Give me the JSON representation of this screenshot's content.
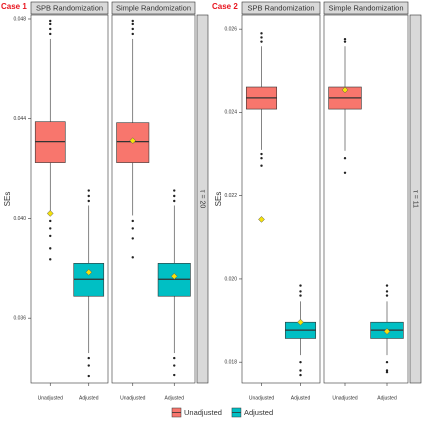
{
  "chart_data": [
    {
      "type": "box",
      "title": "Case 1",
      "facet": "τ = 20",
      "ylabel": "SEs",
      "categories": [
        "Unadjusted",
        "Adjusted"
      ],
      "colors": [
        "#F8766D",
        "#00BFC4"
      ],
      "ylim": [
        0.0334,
        0.04816
      ],
      "yticks": [
        0.036,
        {
          "value": 0.04,
          "label": "0.040"
        },
        0.044,
        0.048
      ],
      "panels": [
        {
          "title": "SPB Randomization",
          "boxes": [
            {
              "whisker_low": 0.04012,
              "q1": 0.04224,
              "median": 0.04308,
              "q3": 0.04388,
              "whisker_high": 0.0472,
              "mean": 0.0402,
              "outliers": [
                0.0474,
                0.0476,
                0.0478,
                0.04792,
                0.0399,
                0.0396,
                0.0393,
                0.0388,
                0.03836
              ]
            },
            {
              "whisker_low": 0.0346,
              "q1": 0.03688,
              "median": 0.03756,
              "q3": 0.0382,
              "whisker_high": 0.04052,
              "mean": 0.03784,
              "outliers": [
                0.0407,
                0.0409,
                0.04112,
                0.0344,
                0.0341,
                0.03368
              ]
            }
          ]
        },
        {
          "title": "Simple Randomization",
          "boxes": [
            {
              "whisker_low": 0.04012,
              "q1": 0.04224,
              "median": 0.04308,
              "q3": 0.04384,
              "whisker_high": 0.0472,
              "mean": 0.04312,
              "outliers": [
                0.0474,
                0.0476,
                0.0478,
                0.04792,
                0.0399,
                0.0396,
                0.0392,
                0.03844
              ]
            },
            {
              "whisker_low": 0.0346,
              "q1": 0.03688,
              "median": 0.03756,
              "q3": 0.0382,
              "whisker_high": 0.04052,
              "mean": 0.03768,
              "outliers": [
                0.0407,
                0.0409,
                0.04112,
                0.0344,
                0.0341,
                0.03372
              ]
            }
          ]
        }
      ]
    },
    {
      "type": "box",
      "title": "Case 2",
      "facet": "τ = 11",
      "ylabel": "SEs",
      "categories": [
        "Unadjusted",
        "Adjusted"
      ],
      "colors": [
        "#F8766D",
        "#00BFC4"
      ],
      "ylim": [
        0.0175,
        0.02634
      ],
      "yticks": [
        0.018,
        {
          "value": 0.02,
          "label": "0.020"
        },
        0.022,
        0.024,
        0.026
      ],
      "panels": [
        {
          "title": "SPB Randomization",
          "boxes": [
            {
              "whisker_low": 0.0231,
              "q1": 0.02408,
              "median": 0.02435,
              "q3": 0.02461,
              "whisker_high": 0.02559,
              "mean": 0.02143,
              "outliers": [
                0.0257,
                0.0258,
                0.0259,
                0.023,
                0.0229,
                0.02272
              ]
            },
            {
              "whisker_low": 0.01817,
              "q1": 0.01857,
              "median": 0.01877,
              "q3": 0.01896,
              "whisker_high": 0.01946,
              "mean": 0.01896,
              "outliers": [
                0.0196,
                0.0197,
                0.01984,
                0.018,
                0.0178,
                0.01769
              ]
            }
          ]
        },
        {
          "title": "Simple Randomization",
          "boxes": [
            {
              "whisker_low": 0.02308,
              "q1": 0.02408,
              "median": 0.02435,
              "q3": 0.02461,
              "whisker_high": 0.02559,
              "mean": 0.02454,
              "outliers": [
                0.0257,
                0.02576,
                0.0229,
                0.02255
              ]
            },
            {
              "whisker_low": 0.01817,
              "q1": 0.01857,
              "median": 0.01877,
              "q3": 0.01896,
              "whisker_high": 0.01946,
              "mean": 0.01874,
              "outliers": [
                0.0196,
                0.0197,
                0.01984,
                0.018,
                0.0178,
                0.01776
              ]
            }
          ]
        }
      ]
    }
  ]
}
